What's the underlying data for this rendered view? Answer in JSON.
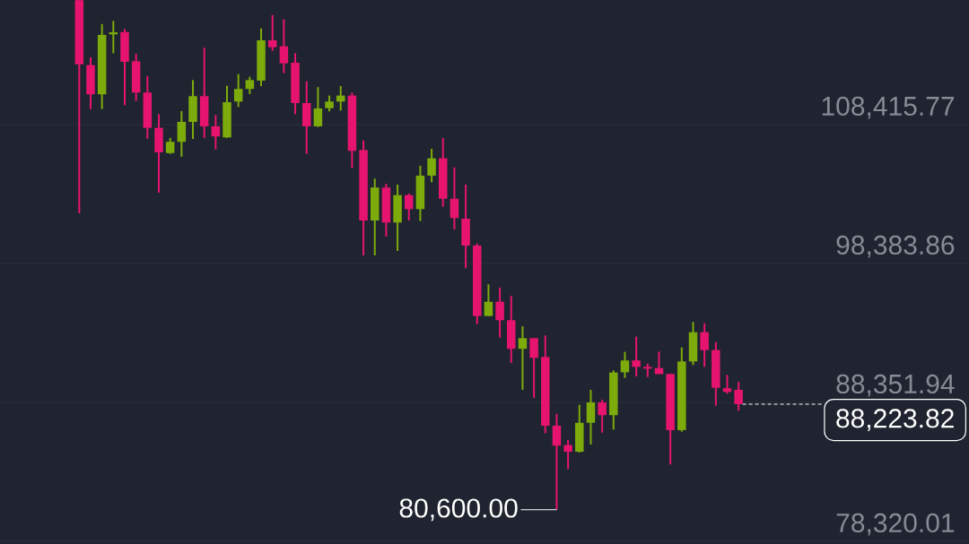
{
  "chart_data": {
    "type": "candlestick",
    "categories": [
      null,
      null,
      null,
      null,
      null,
      null,
      null,
      null,
      null,
      null,
      null,
      null,
      null,
      null,
      null,
      null,
      null,
      null,
      null,
      null,
      null,
      null,
      null,
      null,
      null,
      null,
      null,
      null,
      null,
      null,
      null,
      null,
      null,
      null,
      null,
      null,
      null,
      null,
      null,
      null,
      null,
      null,
      null,
      null,
      null,
      null,
      null,
      null,
      null,
      null,
      null,
      null,
      null,
      null,
      null,
      null,
      null,
      null,
      null
    ],
    "ohlc": [
      [
        117400,
        117400,
        102010,
        112770
      ],
      [
        112710,
        113270,
        109540,
        110600
      ],
      [
        110600,
        115680,
        109540,
        114890
      ],
      [
        114930,
        115900,
        113570,
        115080
      ],
      [
        115100,
        115320,
        109820,
        112950
      ],
      [
        112990,
        113530,
        110120,
        110730
      ],
      [
        110730,
        111910,
        107380,
        108180
      ],
      [
        108180,
        109170,
        103500,
        106410
      ],
      [
        106360,
        107450,
        106300,
        107170
      ],
      [
        107170,
        109390,
        106090,
        108610
      ],
      [
        108610,
        111630,
        107380,
        110470
      ],
      [
        110470,
        113960,
        107450,
        108290
      ],
      [
        108290,
        109110,
        106620,
        107560
      ],
      [
        107490,
        111220,
        107450,
        110030
      ],
      [
        110080,
        112060,
        109690,
        110990
      ],
      [
        110990,
        111870,
        110620,
        111630
      ],
      [
        111590,
        115360,
        111200,
        114500
      ],
      [
        114500,
        116330,
        113740,
        114000
      ],
      [
        114070,
        116010,
        112130,
        112840
      ],
      [
        112880,
        113570,
        109170,
        109970
      ],
      [
        109970,
        111540,
        106300,
        108290
      ],
      [
        108290,
        111120,
        108240,
        109580
      ],
      [
        109600,
        110510,
        109370,
        110080
      ],
      [
        110080,
        111200,
        109430,
        110510
      ],
      [
        110510,
        110730,
        105290,
        106520
      ],
      [
        106580,
        107270,
        98970,
        101490
      ],
      [
        101490,
        104510,
        98970,
        103870
      ],
      [
        103870,
        104140,
        100330,
        101340
      ],
      [
        101340,
        104080,
        99290,
        103320
      ],
      [
        103320,
        103430,
        101490,
        102310
      ],
      [
        102310,
        105440,
        101450,
        104730
      ],
      [
        104730,
        106670,
        104250,
        105980
      ],
      [
        105980,
        107450,
        102480,
        103060
      ],
      [
        103060,
        105330,
        100840,
        101670
      ],
      [
        101620,
        104080,
        98040,
        99680
      ],
      [
        99680,
        99830,
        94000,
        94590
      ],
      [
        94590,
        96880,
        94590,
        95620
      ],
      [
        95620,
        96640,
        93030,
        94290
      ],
      [
        94290,
        96050,
        91200,
        92220
      ],
      [
        92220,
        93850,
        89260,
        92990
      ],
      [
        92990,
        92990,
        88680,
        91570
      ],
      [
        91630,
        93190,
        86130,
        86670
      ],
      [
        86670,
        87530,
        80600,
        85230
      ],
      [
        85270,
        85650,
        83540,
        84790
      ],
      [
        84790,
        88180,
        84730,
        86880
      ],
      [
        86880,
        89260,
        85310,
        88350
      ],
      [
        88350,
        88550,
        86170,
        87430
      ],
      [
        87430,
        90660,
        86390,
        90510
      ],
      [
        90530,
        92000,
        90120,
        91380
      ],
      [
        91380,
        93100,
        90230,
        90920
      ],
      [
        90920,
        91160,
        90180,
        90790
      ],
      [
        90830,
        92020,
        90400,
        90400
      ],
      [
        90400,
        90440,
        83870,
        86350
      ],
      [
        86350,
        92320,
        86240,
        91310
      ],
      [
        91310,
        94160,
        91050,
        93420
      ],
      [
        93420,
        94070,
        90920,
        92130
      ],
      [
        92130,
        92710,
        88110,
        89410
      ],
      [
        89370,
        90340,
        88980,
        89110
      ],
      [
        89260,
        89840,
        87750,
        88223.82
      ]
    ],
    "colors": [
      "#e6146e",
      "#e6146e",
      "#7dab0b",
      "#7dab0b",
      "#e6146e",
      "#e6146e",
      "#e6146e",
      "#e6146e",
      "#7dab0b",
      "#7dab0b",
      "#7dab0b",
      "#e6146e",
      "#e6146e",
      "#7dab0b",
      "#7dab0b",
      "#7dab0b",
      "#7dab0b",
      "#e6146e",
      "#e6146e",
      "#e6146e",
      "#e6146e",
      "#7dab0b",
      "#7dab0b",
      "#7dab0b",
      "#e6146e",
      "#e6146e",
      "#7dab0b",
      "#e6146e",
      "#7dab0b",
      "#e6146e",
      "#7dab0b",
      "#7dab0b",
      "#e6146e",
      "#e6146e",
      "#e6146e",
      "#e6146e",
      "#7dab0b",
      "#e6146e",
      "#e6146e",
      "#7dab0b",
      "#e6146e",
      "#e6146e",
      "#e6146e",
      "#e6146e",
      "#7dab0b",
      "#7dab0b",
      "#e6146e",
      "#7dab0b",
      "#7dab0b",
      "#e6146e",
      "#e6146e",
      "#e6146e",
      "#e6146e",
      "#7dab0b",
      "#7dab0b",
      "#e6146e",
      "#e6146e",
      "#e6146e",
      "#e6146e"
    ],
    "ylim": [
      78126,
      117412
    ],
    "yticks": [
      {
        "value": 108415.77,
        "label": "108,415.77"
      },
      {
        "value": 98383.86,
        "label": "98,383.86"
      },
      {
        "value": 88351.94,
        "label": "88,351.94"
      },
      {
        "value": 78320.01,
        "label": "78,320.01"
      }
    ],
    "grid": "y",
    "tick_labels": "y",
    "ref_lines": [
      {
        "axis": "y",
        "value": 88223.82,
        "label": "88,223.82",
        "line_style": "dashed",
        "color": "#ffffff"
      }
    ],
    "annotations": [
      "80,600.00"
    ]
  }
}
